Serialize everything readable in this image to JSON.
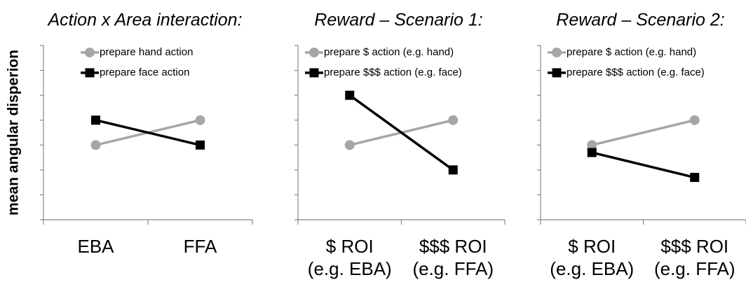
{
  "chart_data": [
    {
      "type": "line",
      "title": "Action x Area interaction:",
      "ylabel": "mean angular disperion",
      "categories": [
        [
          "EBA"
        ],
        [
          "FFA"
        ]
      ],
      "series": [
        {
          "name": "prepare hand action",
          "color": "#a6a6a6",
          "marker": "circle",
          "values": [
            3,
            4
          ]
        },
        {
          "name": "prepare face action",
          "color": "#000000",
          "marker": "square",
          "values": [
            4,
            3
          ]
        }
      ],
      "ylim": [
        0,
        7
      ],
      "yticks": [
        0,
        1,
        2,
        3,
        4,
        5,
        6,
        7
      ],
      "legend": "upper left"
    },
    {
      "type": "line",
      "title": "Reward – Scenario 1:",
      "categories": [
        [
          "$ ROI",
          "(e.g. EBA)"
        ],
        [
          "$$$ ROI",
          "(e.g. FFA)"
        ]
      ],
      "series": [
        {
          "name": "prepare $ action (e.g. hand)",
          "color": "#a6a6a6",
          "marker": "circle",
          "values": [
            3,
            4
          ]
        },
        {
          "name": "prepare $$$ action (e.g. face)",
          "color": "#000000",
          "marker": "square",
          "values": [
            5,
            2
          ]
        }
      ],
      "ylim": [
        0,
        7
      ],
      "yticks": [
        0,
        1,
        2,
        3,
        4,
        5,
        6,
        7
      ],
      "legend": "upper left"
    },
    {
      "type": "line",
      "title": "Reward – Scenario 2:",
      "categories": [
        [
          "$ ROI",
          "(e.g. EBA)"
        ],
        [
          "$$$ ROI",
          "(e.g. FFA)"
        ]
      ],
      "series": [
        {
          "name": "prepare $ action (e.g. hand)",
          "color": "#a6a6a6",
          "marker": "circle",
          "values": [
            3,
            4
          ]
        },
        {
          "name": "prepare $$$ action (e.g. face)",
          "color": "#000000",
          "marker": "square",
          "values": [
            2.7,
            1.7
          ]
        }
      ],
      "ylim": [
        0,
        7
      ],
      "yticks": [
        0,
        1,
        2,
        3,
        4,
        5,
        6,
        7
      ],
      "legend": "upper left"
    }
  ]
}
